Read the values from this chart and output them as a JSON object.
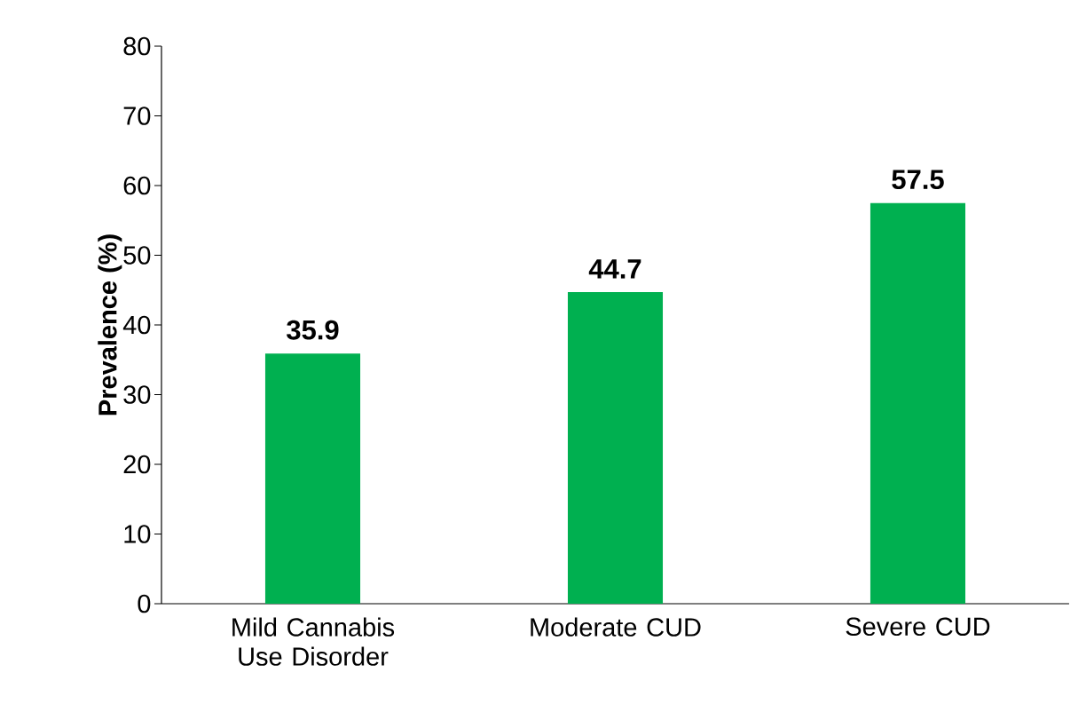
{
  "chart_data": {
    "type": "bar",
    "ylabel": "Prevalence (%)",
    "categories": [
      "Mild Cannabis Use Disorder",
      "Moderate CUD",
      "Severe CUD"
    ],
    "values": [
      35.9,
      44.7,
      57.5
    ],
    "color": "#00b050",
    "ylim": [
      0,
      80
    ],
    "yticks": [
      0,
      10,
      20,
      30,
      40,
      50,
      60,
      70,
      80
    ],
    "data_labels": true,
    "grid": false
  }
}
